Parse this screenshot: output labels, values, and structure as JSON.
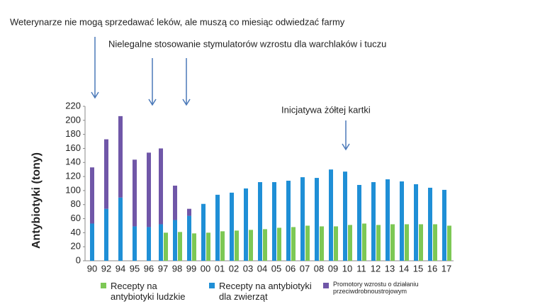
{
  "chart_data": {
    "type": "bar",
    "ylabel": "Antybiotyki (tony)",
    "annotations": [
      "Weterynarze nie mogą sprzedawać leków, ale muszą co miesiąc odwiedzać farmy",
      "Nielegalne stosowanie stymulatorów wzrostu dla warchlaków i tuczu",
      "Inicjatywa żółtej kartki"
    ],
    "categories": [
      "90",
      "92",
      "94",
      "95",
      "96",
      "97",
      "98",
      "99",
      "00",
      "01",
      "02",
      "03",
      "04",
      "05",
      "06",
      "07",
      "08",
      "09",
      "10",
      "11",
      "12",
      "13",
      "14",
      "15",
      "16",
      "17"
    ],
    "series": [
      {
        "name": "Recepty na antybiotyki ludzkie",
        "color": "#7dc855",
        "values": [
          null,
          null,
          null,
          null,
          null,
          40,
          41,
          39,
          40,
          42,
          43,
          44,
          45,
          47,
          48,
          50,
          49,
          49,
          51,
          53,
          51,
          52,
          52,
          52,
          52,
          50
        ]
      },
      {
        "name": "Recepty na antybiotyki dla zwierząt",
        "color": "#1f8fd6",
        "values": [
          53,
          74,
          90,
          49,
          48,
          52,
          58,
          64,
          81,
          94,
          97,
          103,
          112,
          112,
          114,
          119,
          118,
          130,
          127,
          108,
          112,
          116,
          113,
          109,
          104,
          101
        ]
      },
      {
        "name": "Promotory wzrostu o działaniu przeciwdrobnoustrojowym",
        "color": "#7057a8",
        "stacked_on": "Recepty na antybiotyki dla zwierząt",
        "values": [
          80,
          99,
          116,
          95,
          106,
          108,
          49,
          10,
          null,
          null,
          null,
          null,
          null,
          null,
          null,
          null,
          null,
          null,
          null,
          null,
          null,
          null,
          null,
          null,
          null,
          null
        ]
      }
    ],
    "ylim": [
      0,
      220
    ],
    "yticks": [
      0,
      20,
      40,
      60,
      80,
      100,
      120,
      140,
      160,
      180,
      200,
      220
    ]
  }
}
